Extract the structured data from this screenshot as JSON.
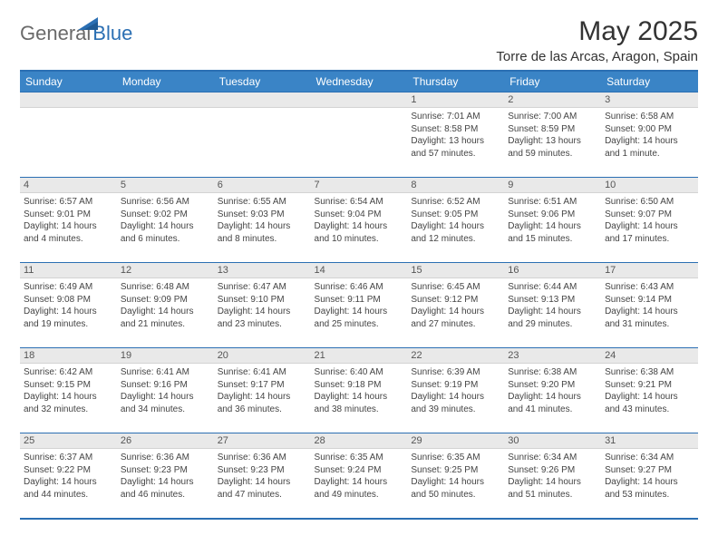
{
  "brand": {
    "part1": "General",
    "part2": "Blue"
  },
  "title": "May 2025",
  "location": "Torre de las Arcas, Aragon, Spain",
  "colors": {
    "header_bg": "#3a84c6",
    "border": "#2b6fb3",
    "day_header_bg": "#e9e9e9",
    "brand_gray": "#6a6a6a",
    "brand_blue": "#2b6fb3",
    "text": "#333333"
  },
  "weekdays": [
    "Sunday",
    "Monday",
    "Tuesday",
    "Wednesday",
    "Thursday",
    "Friday",
    "Saturday"
  ],
  "weeks": [
    [
      {
        "n": "",
        "sunrise": "",
        "sunset": "",
        "daylight": ""
      },
      {
        "n": "",
        "sunrise": "",
        "sunset": "",
        "daylight": ""
      },
      {
        "n": "",
        "sunrise": "",
        "sunset": "",
        "daylight": ""
      },
      {
        "n": "",
        "sunrise": "",
        "sunset": "",
        "daylight": ""
      },
      {
        "n": "1",
        "sunrise": "Sunrise: 7:01 AM",
        "sunset": "Sunset: 8:58 PM",
        "daylight": "Daylight: 13 hours and 57 minutes."
      },
      {
        "n": "2",
        "sunrise": "Sunrise: 7:00 AM",
        "sunset": "Sunset: 8:59 PM",
        "daylight": "Daylight: 13 hours and 59 minutes."
      },
      {
        "n": "3",
        "sunrise": "Sunrise: 6:58 AM",
        "sunset": "Sunset: 9:00 PM",
        "daylight": "Daylight: 14 hours and 1 minute."
      }
    ],
    [
      {
        "n": "4",
        "sunrise": "Sunrise: 6:57 AM",
        "sunset": "Sunset: 9:01 PM",
        "daylight": "Daylight: 14 hours and 4 minutes."
      },
      {
        "n": "5",
        "sunrise": "Sunrise: 6:56 AM",
        "sunset": "Sunset: 9:02 PM",
        "daylight": "Daylight: 14 hours and 6 minutes."
      },
      {
        "n": "6",
        "sunrise": "Sunrise: 6:55 AM",
        "sunset": "Sunset: 9:03 PM",
        "daylight": "Daylight: 14 hours and 8 minutes."
      },
      {
        "n": "7",
        "sunrise": "Sunrise: 6:54 AM",
        "sunset": "Sunset: 9:04 PM",
        "daylight": "Daylight: 14 hours and 10 minutes."
      },
      {
        "n": "8",
        "sunrise": "Sunrise: 6:52 AM",
        "sunset": "Sunset: 9:05 PM",
        "daylight": "Daylight: 14 hours and 12 minutes."
      },
      {
        "n": "9",
        "sunrise": "Sunrise: 6:51 AM",
        "sunset": "Sunset: 9:06 PM",
        "daylight": "Daylight: 14 hours and 15 minutes."
      },
      {
        "n": "10",
        "sunrise": "Sunrise: 6:50 AM",
        "sunset": "Sunset: 9:07 PM",
        "daylight": "Daylight: 14 hours and 17 minutes."
      }
    ],
    [
      {
        "n": "11",
        "sunrise": "Sunrise: 6:49 AM",
        "sunset": "Sunset: 9:08 PM",
        "daylight": "Daylight: 14 hours and 19 minutes."
      },
      {
        "n": "12",
        "sunrise": "Sunrise: 6:48 AM",
        "sunset": "Sunset: 9:09 PM",
        "daylight": "Daylight: 14 hours and 21 minutes."
      },
      {
        "n": "13",
        "sunrise": "Sunrise: 6:47 AM",
        "sunset": "Sunset: 9:10 PM",
        "daylight": "Daylight: 14 hours and 23 minutes."
      },
      {
        "n": "14",
        "sunrise": "Sunrise: 6:46 AM",
        "sunset": "Sunset: 9:11 PM",
        "daylight": "Daylight: 14 hours and 25 minutes."
      },
      {
        "n": "15",
        "sunrise": "Sunrise: 6:45 AM",
        "sunset": "Sunset: 9:12 PM",
        "daylight": "Daylight: 14 hours and 27 minutes."
      },
      {
        "n": "16",
        "sunrise": "Sunrise: 6:44 AM",
        "sunset": "Sunset: 9:13 PM",
        "daylight": "Daylight: 14 hours and 29 minutes."
      },
      {
        "n": "17",
        "sunrise": "Sunrise: 6:43 AM",
        "sunset": "Sunset: 9:14 PM",
        "daylight": "Daylight: 14 hours and 31 minutes."
      }
    ],
    [
      {
        "n": "18",
        "sunrise": "Sunrise: 6:42 AM",
        "sunset": "Sunset: 9:15 PM",
        "daylight": "Daylight: 14 hours and 32 minutes."
      },
      {
        "n": "19",
        "sunrise": "Sunrise: 6:41 AM",
        "sunset": "Sunset: 9:16 PM",
        "daylight": "Daylight: 14 hours and 34 minutes."
      },
      {
        "n": "20",
        "sunrise": "Sunrise: 6:41 AM",
        "sunset": "Sunset: 9:17 PM",
        "daylight": "Daylight: 14 hours and 36 minutes."
      },
      {
        "n": "21",
        "sunrise": "Sunrise: 6:40 AM",
        "sunset": "Sunset: 9:18 PM",
        "daylight": "Daylight: 14 hours and 38 minutes."
      },
      {
        "n": "22",
        "sunrise": "Sunrise: 6:39 AM",
        "sunset": "Sunset: 9:19 PM",
        "daylight": "Daylight: 14 hours and 39 minutes."
      },
      {
        "n": "23",
        "sunrise": "Sunrise: 6:38 AM",
        "sunset": "Sunset: 9:20 PM",
        "daylight": "Daylight: 14 hours and 41 minutes."
      },
      {
        "n": "24",
        "sunrise": "Sunrise: 6:38 AM",
        "sunset": "Sunset: 9:21 PM",
        "daylight": "Daylight: 14 hours and 43 minutes."
      }
    ],
    [
      {
        "n": "25",
        "sunrise": "Sunrise: 6:37 AM",
        "sunset": "Sunset: 9:22 PM",
        "daylight": "Daylight: 14 hours and 44 minutes."
      },
      {
        "n": "26",
        "sunrise": "Sunrise: 6:36 AM",
        "sunset": "Sunset: 9:23 PM",
        "daylight": "Daylight: 14 hours and 46 minutes."
      },
      {
        "n": "27",
        "sunrise": "Sunrise: 6:36 AM",
        "sunset": "Sunset: 9:23 PM",
        "daylight": "Daylight: 14 hours and 47 minutes."
      },
      {
        "n": "28",
        "sunrise": "Sunrise: 6:35 AM",
        "sunset": "Sunset: 9:24 PM",
        "daylight": "Daylight: 14 hours and 49 minutes."
      },
      {
        "n": "29",
        "sunrise": "Sunrise: 6:35 AM",
        "sunset": "Sunset: 9:25 PM",
        "daylight": "Daylight: 14 hours and 50 minutes."
      },
      {
        "n": "30",
        "sunrise": "Sunrise: 6:34 AM",
        "sunset": "Sunset: 9:26 PM",
        "daylight": "Daylight: 14 hours and 51 minutes."
      },
      {
        "n": "31",
        "sunrise": "Sunrise: 6:34 AM",
        "sunset": "Sunset: 9:27 PM",
        "daylight": "Daylight: 14 hours and 53 minutes."
      }
    ]
  ]
}
